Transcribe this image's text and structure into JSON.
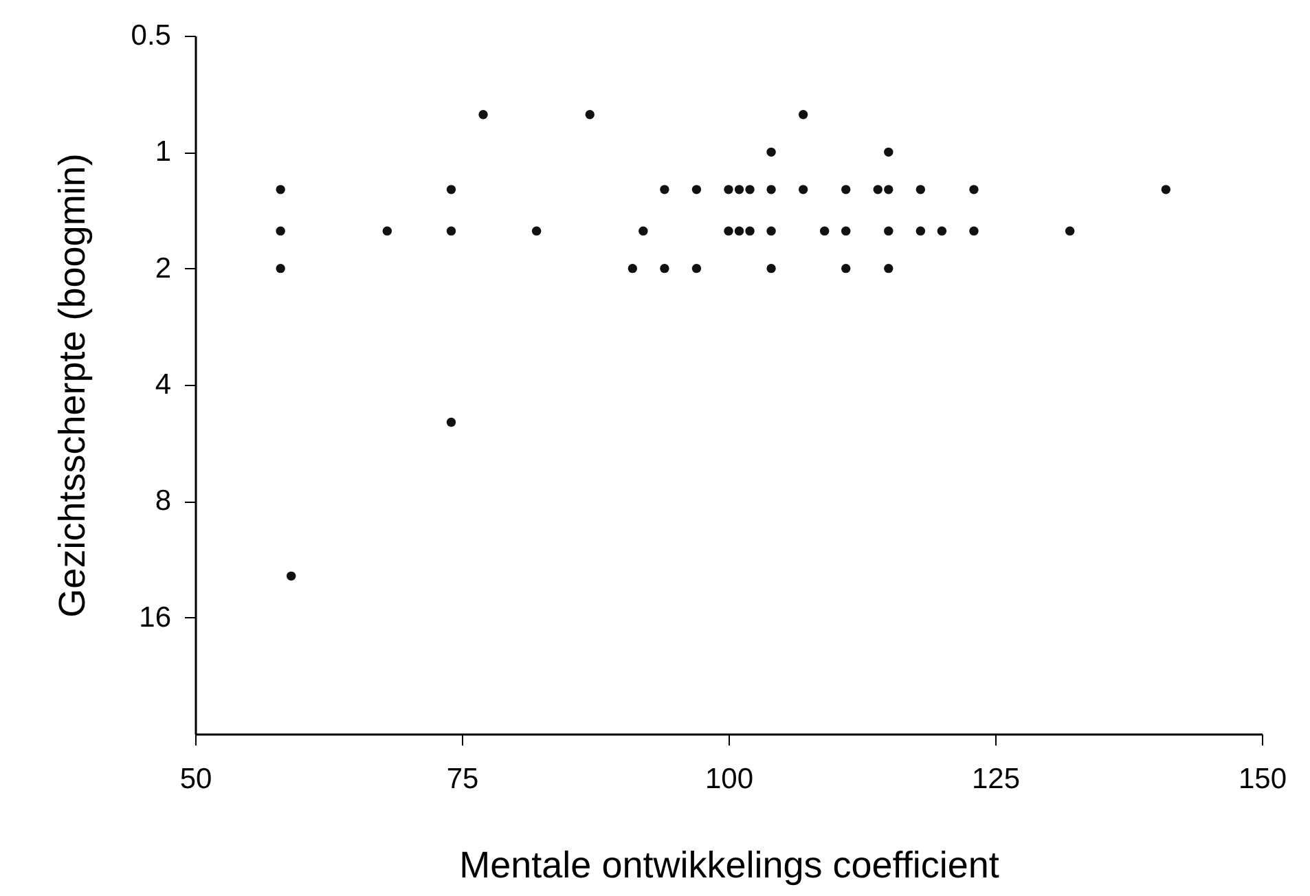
{
  "chart_data": {
    "type": "scatter",
    "xlabel": "Mentale  ontwikkelings  coefficient",
    "ylabel": "Gezichtsscherpte  (boogmin)",
    "x": [
      77,
      87,
      107,
      104,
      115,
      58,
      74,
      94,
      97,
      100,
      101,
      102,
      104,
      107,
      111,
      114,
      115,
      118,
      123,
      141,
      58,
      68,
      74,
      82,
      92,
      100,
      101,
      102,
      104,
      109,
      111,
      115,
      118,
      120,
      123,
      132,
      58,
      91,
      94,
      97,
      104,
      111,
      115,
      74,
      59
    ],
    "series": [
      {
        "color": "#111111",
        "values": [
          0.8,
          0.8,
          0.8,
          1,
          1,
          1.25,
          1.25,
          1.25,
          1.25,
          1.25,
          1.25,
          1.25,
          1.25,
          1.25,
          1.25,
          1.25,
          1.25,
          1.25,
          1.25,
          1.25,
          1.6,
          1.6,
          1.6,
          1.6,
          1.6,
          1.6,
          1.6,
          1.6,
          1.6,
          1.6,
          1.6,
          1.6,
          1.6,
          1.6,
          1.6,
          1.6,
          2,
          2,
          2,
          2,
          2,
          2,
          2,
          5,
          12.5
        ]
      }
    ],
    "xlim": [
      50,
      150
    ],
    "xticks": [
      50,
      75,
      100,
      125,
      150
    ],
    "ylim": [
      32,
      0.5
    ],
    "yticks": [
      0.5,
      1,
      2,
      4,
      8,
      16
    ],
    "log": "y",
    "marker": "circle",
    "grid": false
  }
}
